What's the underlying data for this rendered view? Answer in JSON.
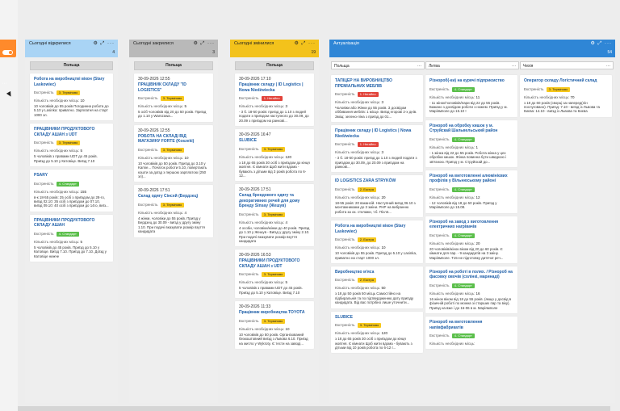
{
  "left_edge": {
    "icon": "more-icon"
  },
  "columns": [
    {
      "title": "Сьогодні відкрилися",
      "count": "4",
      "accent": "#a9d4f5",
      "group": "Польща",
      "cards": [
        {
          "title": "Робота на виробництві вікон (Stary Laskowiec)",
          "urgency_label": "Екстреність",
          "urgency": "3. Терміново",
          "badge_color": "yellow",
          "count_label": "Кількість необхідних місць:",
          "count": "10",
          "desc": "10 чоловіків до 55 років Погодинна робота до 5.10 у Lasinka: приватно. Зарплатня на старт 1000 зл."
        },
        {
          "title": "ПРАЦІВНИКИ ПРОДУКТОВОГО СКЛАДУ АШАН з UDT",
          "urgency_label": "Екстреність",
          "urgency": "3. Терміново",
          "badge_color": "yellow",
          "count_label": "Кількість необхідних місць:",
          "count": "5",
          "desc": "5 чоловіків з правами UDT до 45 років. Приїзд до 5.10 у Катовіце. Виїзд 7.10"
        },
        {
          "title": "PSARY",
          "urgency_label": "Екстреність",
          "urgency": "4. Стандарт",
          "badge_color": "green",
          "count_label": "Кількість необхідних місць:",
          "count": "155",
          "desc": "в-к 18-55 років: 25 осіб з приїздом до 28-го, виїзд 02.10: 35 осіб з приїздом до 07.10, виїзд 09.10: 40 осіб з приїздом до 14го, виїз..."
        },
        {
          "title": "ПРАЦІВНИКИ ПРОДУКТОВОГО СКЛАДУ АШАН",
          "urgency_label": "Екстреність",
          "urgency": "4. Стандарт",
          "badge_color": "green",
          "count_label": "Кількість необхідних місць:",
          "count": "5",
          "desc": "5 чоловіків до 45 років. Приїзд до 5.10 у Катовіце. Виїзд 7.10. Приїзд до 7.10. Доїзд у Катовіце нижче"
        }
      ]
    },
    {
      "title": "Сьогодні закрилися",
      "count": "3",
      "accent": "#b9b9b9",
      "group": "Польща",
      "cards": [
        {
          "date": "30-09-2026 12:55",
          "title": "ПРАЦІВНИК СКЛАДУ \"ID LOGISTICS\"",
          "urgency_label": "Екстреність",
          "urgency": "3. Терміново",
          "badge_color": "yellow",
          "count_label": "Кількість необхідних місць:",
          "count": "5",
          "desc": "5 осіб чоловіків від 20 до 50 років. Приїзд до 1.10 у Warszawa..."
        },
        {
          "date": "30-09-2026 12:55",
          "title": "РОБОТА НА СКЛАДІ ВІД МАГАЗИНУ FORTE (Koszeki)",
          "urgency_label": "Екстреність",
          "urgency": "3. Терміново",
          "badge_color": "yellow",
          "count_label": "Кількість необхідних місць:",
          "count": "10",
          "desc": "10 чоловіків до 50 років. Приїзд до 3.10 у Kamie... Початок роботи 5.10, повертають кошти за доїзд з першою зарплатою (250 зл)..."
        },
        {
          "date": "30-09-2026 17:51",
          "title": "Склад одягу Сінсей (Бердзец)",
          "urgency_label": "Екстреність",
          "urgency": "3. Терміново",
          "badge_color": "yellow",
          "count_label": "Кількість необхідних місць:",
          "count": "4",
          "desc": "4 жінки, чоловіки до 55 років. Приїзд у Бердзец до 30.09 - виїзд у другу зміну 1.10. При подачі вказувати розмір взуття кандидата"
        }
      ]
    },
    {
      "title": "Сьогодні змінилися",
      "count": "19",
      "accent": "#f3c21b",
      "group": "Польща",
      "cards": [
        {
          "date": "30-09-2026 17:10",
          "title": "Працівник складу | ID Logistics | Nowa Niedźwiecka",
          "urgency_label": "Екстреність",
          "urgency": "1. Негайно",
          "badge_color": "red",
          "count_label": "Кількість необхідних місць:",
          "count": "3",
          "desc": "- 3 б. 18-50 років: приїзд до 1.10 з людей подати з приїздом наступного до 30.09, до 20.09 з приїздом на ранкові..."
        },
        {
          "date": "30-09-2026 16:47",
          "title": "SLUBICE",
          "urgency_label": "Екстреність",
          "urgency": "3. Терміново",
          "badge_color": "yellow",
          "count_label": "Кількість необхідних місць:",
          "count": "120",
          "desc": "з 18 до 65 років     30 осіб з приїздом до кінця жовтня. Є кімнати Щоб жити вдома - бувають з дітьми від 3 років     робота по 6-12..."
        },
        {
          "date": "30-09-2026 17:51",
          "title": "Склад брендового одягу та декоративних речей для дому Бренду Sinsay (Жешув)",
          "urgency_label": "Екстреність",
          "urgency": "3. Терміново",
          "badge_color": "yellow",
          "count_label": "Кількість необхідних місць:",
          "count": "4",
          "desc": "4 особи, чоловіки/жінки до 40 років. Приїзд до 1.10 у Жешув - Виїзд у другу зміну 2.10. При подачі вказувати розмір взуття кандидата"
        },
        {
          "date": "30-09-2026 16:53",
          "title": "ПРАЦІВНИКИ ПРОДУКТОВОГО СКЛАДУ АШАН з UDT",
          "urgency_label": "Екстреність",
          "urgency": "3. Терміново",
          "badge_color": "yellow",
          "count_label": "Кількість необхідних місць:",
          "count": "5",
          "desc": "5 чоловіків з правами UDT до 45 років. Приїзд до 5.10 у Катовіце. Виїзд 7.10"
        },
        {
          "date": "30-09-2026 11:33",
          "title": "Працівник виробництва TOYOTA",
          "urgency_label": "Екстреність",
          "urgency": "3. Терміново",
          "badge_color": "yellow",
          "count_label": "Кількість необхідних місць:",
          "count": "10",
          "desc": "10 чоловіків до 50 років. Організований безкоштовний виїзд з Львова 6.10. Приїзд на житло у Wykroty. Є тести на заводі..."
        }
      ]
    }
  ],
  "actualization": {
    "title": "Актуалізація",
    "count": "54",
    "accent": "#2f86d6",
    "subcols": [
      {
        "name": "Польща",
        "cards": [
          {
            "title": "ТАПІЦЕР НА ВИРОБНИЦТВО ПРЕМІАЛЬНИХ МЕБЛІВ",
            "urgency_label": "Екстреність",
            "urgency": "1. Негайно",
            "badge_color": "red",
            "count_label": "Кількість необхідних місць:",
            "count": "3",
            "desc": "Чоловіки або Жінки до 55 років. З досвідом оббивання меблів: 1 місце. Виїзд егорові 2-х днів. Зміщ: зелено-ліна з приїзд до 01..."
          },
          {
            "title": "Працівник складу | ID Logistics | Nowa Niedźwiecka",
            "urgency_label": "Екстреність",
            "urgency": "1. Негайно",
            "badge_color": "red",
            "count_label": "Кількість необхідних місць:",
            "count": "3",
            "desc": "- 3 б. 18-50 років: приїзд до 1.10 з людей подати з приїздом до 30.09, до 20.09 з приїздом на ранкові..."
          },
          {
            "title": "ID LOGISTICS ZARA STRYKÓW",
            "urgency_label": "Екстреність",
            "urgency": "2. Екстра",
            "badge_color": "yellow",
            "count_label": "Кількість необхідних місць:",
            "count": "20",
            "desc": "18-55 років: 20 вакансій. Наступний виїзд 06.10 з монтажниками до 3 зміни. РНР на вибранню робота за ок. стелажи, т.б. Після..."
          },
          {
            "title": "Робота на виробництві вікон (Stary Laskowiec)",
            "urgency_label": "Екстреність",
            "urgency": "2. Екстра",
            "badge_color": "yellow",
            "count_label": "Кількість необхідних місць:",
            "count": "10",
            "desc": "10 чоловіків до 55 років. Приїзд до 5.10 у Lasinka, приватно на старт 1000 зл."
          },
          {
            "title": "Виробництво м'яса",
            "urgency_label": "Екстреність",
            "urgency": "2. Екстра",
            "badge_color": "yellow",
            "count_label": "Кількість необхідних місць:",
            "count": "50",
            "desc": "з 18 до 50 років   50 місць   Самостійно на підбиральнія та по підтвердженню дату приїзду кандидата. Від вас потрібно лише уточнити..."
          },
          {
            "title": "SLUBICE",
            "urgency_label": "Екстреність",
            "urgency": "3. Терміново",
            "badge_color": "yellow",
            "count_label": "Кількість необхідних місць:",
            "count": "120",
            "desc": "з 18 до 65 років     30 осіб з приїздом до кінця жовтня. Є кімнати Щоб жити вдома - бувають з дітьми від 10 років     робота по 6-12 г..."
          }
        ]
      },
      {
        "name": "Литва",
        "cards": [
          {
            "title": "Різнороб(-ки) на курячі підприємство",
            "urgency_label": "Екстреність",
            "urgency": "4. Стандарт",
            "badge_color": "green",
            "count_label": "Кількість необхідних місць:",
            "count": "11",
            "desc": "- 11 жінок/чоловіків/пари від 22 до 55 років. Бажано з досвідом роботи з ножем. Приїзд у м. Маріямполе до 15.10 !"
          },
          {
            "title": "Різнороб на обробку кишок у м. Струйскай Шальвельський район",
            "urgency_label": "Екстреність",
            "urgency": "4. Стандарт",
            "badge_color": "green",
            "count_label": "Кількість необхідних місць:",
            "count": "1",
            "desc": "- 1 жінка від 22 до 55 років. Робота жінка у цех обробки кишок. Жінка повинна бути швидкою і зв'язною. Приїзд у м. Струйскай до..."
          },
          {
            "title": "Різнороб на виготовленні алюмінієвих профілів у Вільнюському районі",
            "urgency_label": "Екстреність",
            "urgency": "4. Стандарт",
            "badge_color": "green",
            "count_label": "Кількість необхідних місць:",
            "count": "12",
            "desc": "- 12 чоловіків від 18 до 50 років. Приїзд у Маріямполе до 15.08."
          },
          {
            "title": "Різнороб на завод з виготовлення електричних нагрівачів",
            "urgency_label": "Екстреність",
            "urgency": "4. Стандарт",
            "badge_color": "green",
            "count_label": "Кількість необхідних місць:",
            "count": "20",
            "desc": "20 чоловіків/жінок віком від 20 до 60 років. Є кімнати для пар. - 9 кандидатів на 3 зміну. Маріямполе. Т15-не підготовку дитячої реч..."
          },
          {
            "title": "Різнороб на роботі в полях. / Різнороб на фасовку овочів (солінкі, маринаді)",
            "urgency_label": "Екстреність",
            "urgency": "4. Стандарт",
            "badge_color": "green",
            "count_label": "Кількість необхідних місць:",
            "count": "16",
            "desc": "16 жінок віком від 18 до 55 років. (якщо у досвід в фізичній роботі по можна зі старших пар та віку). Приїзд на вже і до 16-06 в м. Маріямполе"
          },
          {
            "title": "Різнороб на виготовлення напівфабрикатів",
            "urgency_label": "Екстреність",
            "urgency": "4. Стандарт",
            "badge_color": "green",
            "count_label": "Кількість необхідних місць:",
            "count": "",
            "desc": ""
          }
        ]
      },
      {
        "name": "Чехія",
        "cards": [
          {
            "title": "Оператор складу Логістичний склад",
            "urgency_label": "Екстреність",
            "urgency": "3. Терміново",
            "badge_color": "yellow",
            "count_label": "Кількість необхідних місць:",
            "count": "70",
            "desc": "з 18 до 60 років (сворці за наперед(лін послуговано). Приїзд: 7.10 - виїзд із Львова та Києва: 14.10 - виїзд із Львова та Києва"
          }
        ]
      }
    ]
  },
  "icons": {
    "settings": "gear-icon",
    "collapse": "collapse-icon",
    "more": "more-icon"
  }
}
